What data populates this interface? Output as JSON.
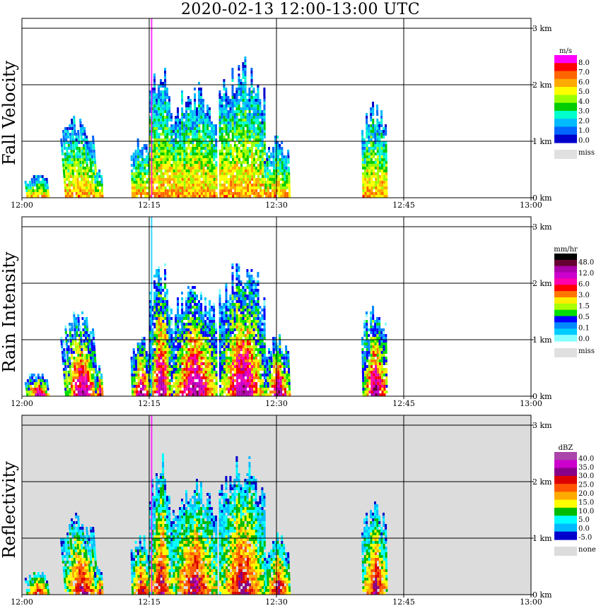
{
  "title": "2020-02-13   12:00-13:00 UTC",
  "chart_data": [
    {
      "type": "heatmap",
      "ylabel": "Fall Velocity",
      "x_ticks": [
        "12:00",
        "12:15",
        "12:30",
        "12:45",
        "13:00"
      ],
      "y_ticks": [
        "0 km",
        "1 km",
        "2 km",
        "3 km"
      ],
      "xlim": [
        "12:00",
        "13:00"
      ],
      "ylim_km": [
        0,
        3.1
      ],
      "background": "#ffffff",
      "colorbar": {
        "unit": "m/s",
        "labels": [
          "8.0",
          "7.0",
          "6.0",
          "5.0",
          "4.0",
          "3.0",
          "2.0",
          "1.0",
          "0.0"
        ],
        "colors": [
          "#ff00ff",
          "#ff0000",
          "#ff6600",
          "#ffaa00",
          "#ffff00",
          "#99ff00",
          "#00cc00",
          "#00ffcc",
          "#00bbff",
          "#0066ff",
          "#0000cc"
        ],
        "missing_label": "miss",
        "missing_color": "#e0e0e0"
      }
    },
    {
      "type": "heatmap",
      "ylabel": "Rain Intensity",
      "x_ticks": [
        "12:00",
        "12:15",
        "12:30",
        "12:45",
        "13:00"
      ],
      "y_ticks": [
        "0 km",
        "1 km",
        "2 km",
        "3 km"
      ],
      "xlim": [
        "12:00",
        "13:00"
      ],
      "ylim_km": [
        0,
        3.1
      ],
      "background": "#ffffff",
      "colorbar": {
        "unit": "mm/hr",
        "labels": [
          "48.0",
          "12.0",
          "6.0",
          "3.0",
          "1.5",
          "0.5",
          "0.1",
          "0.0"
        ],
        "colors": [
          "#000000",
          "#660033",
          "#aa00aa",
          "#cc00cc",
          "#ff00aa",
          "#ff0000",
          "#ff7700",
          "#ffee00",
          "#aaff00",
          "#00dd00",
          "#0000ff",
          "#0088ff",
          "#00ccff",
          "#88ffff"
        ],
        "missing_label": "miss",
        "missing_color": "#e0e0e0"
      }
    },
    {
      "type": "heatmap",
      "ylabel": "Reflectivity",
      "x_ticks": [
        "12:00",
        "12:15",
        "12:30",
        "12:45",
        "13:00"
      ],
      "y_ticks": [
        "0 km",
        "1 km",
        "2 km",
        "3 km"
      ],
      "xlim": [
        "12:00",
        "13:00"
      ],
      "ylim_km": [
        0,
        3.1
      ],
      "background": "#dcdcdc",
      "colorbar": {
        "unit": "dBZ",
        "labels": [
          "40.0",
          "35.0",
          "30.0",
          "25.0",
          "20.0",
          "15.0",
          "10.0",
          "5.0",
          "0.0",
          "-5.0"
        ],
        "colors": [
          "#aa44aa",
          "#cc00cc",
          "#880088",
          "#dd0000",
          "#ff5500",
          "#ffaa00",
          "#ffff00",
          "#00bb00",
          "#00ffff",
          "#00bbff",
          "#0000cc"
        ],
        "missing_label": "none",
        "missing_color": "#dcdcdc"
      }
    }
  ]
}
